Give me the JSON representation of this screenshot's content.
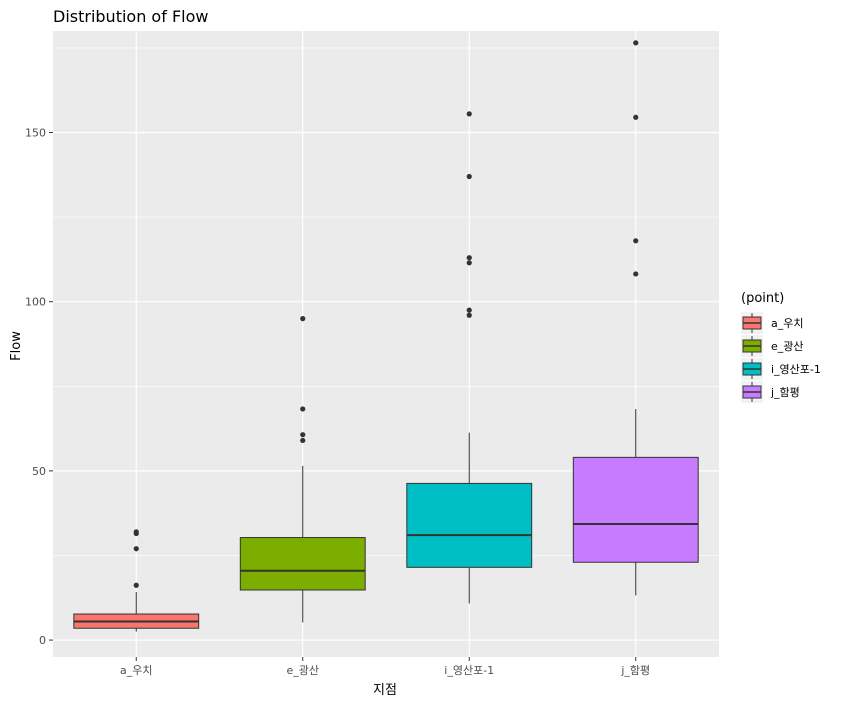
{
  "chart_data": {
    "type": "boxplot",
    "title": "Distribution of Flow",
    "xlabel": "지점",
    "ylabel": "Flow",
    "ylim": [
      -5,
      180
    ],
    "yticks": [
      0,
      50,
      100,
      150
    ],
    "grid": true,
    "legend": {
      "title": "(point)",
      "placement": "right"
    },
    "categories": [
      "a_우치",
      "e_광산",
      "i_영산포-1",
      "j_함평"
    ],
    "series": [
      {
        "name": "a_우치",
        "color": "#F8766D",
        "min": 2.5,
        "q1": 3.5,
        "median": 5.5,
        "q3": 7.7,
        "max": 14.2,
        "outliers": [
          16.2,
          27.0,
          31.5,
          32.0
        ]
      },
      {
        "name": "e_광산",
        "color": "#7CAE00",
        "min": 5.2,
        "q1": 14.8,
        "median": 20.5,
        "q3": 30.3,
        "max": 51.5,
        "outliers": [
          59.0,
          60.7,
          68.3,
          95.0
        ]
      },
      {
        "name": "i_영산포-1",
        "color": "#00BFC4",
        "min": 10.8,
        "q1": 21.5,
        "median": 31.0,
        "q3": 46.3,
        "max": 61.3,
        "outliers": [
          96.0,
          97.5,
          111.5,
          113.0,
          137.0,
          155.5
        ]
      },
      {
        "name": "j_함평",
        "color": "#C77CFF",
        "min": 13.2,
        "q1": 23.0,
        "median": 34.3,
        "q3": 54.0,
        "max": 68.3,
        "outliers": [
          108.2,
          118.0,
          154.5,
          176.5
        ]
      }
    ]
  }
}
